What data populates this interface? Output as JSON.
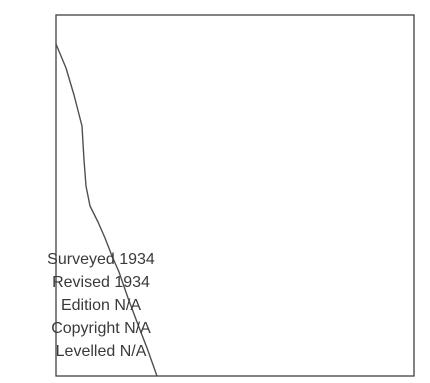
{
  "map": {
    "colors": {
      "background": "#ffffff",
      "frame": "#404040",
      "line": "#505050",
      "text": "#3a3a3a"
    }
  },
  "info": {
    "surveyed": "Surveyed 1934",
    "revised": "Revised 1934",
    "edition": "Edition N/A",
    "copyright": "Copyright N/A",
    "levelled": "Levelled N/A"
  }
}
